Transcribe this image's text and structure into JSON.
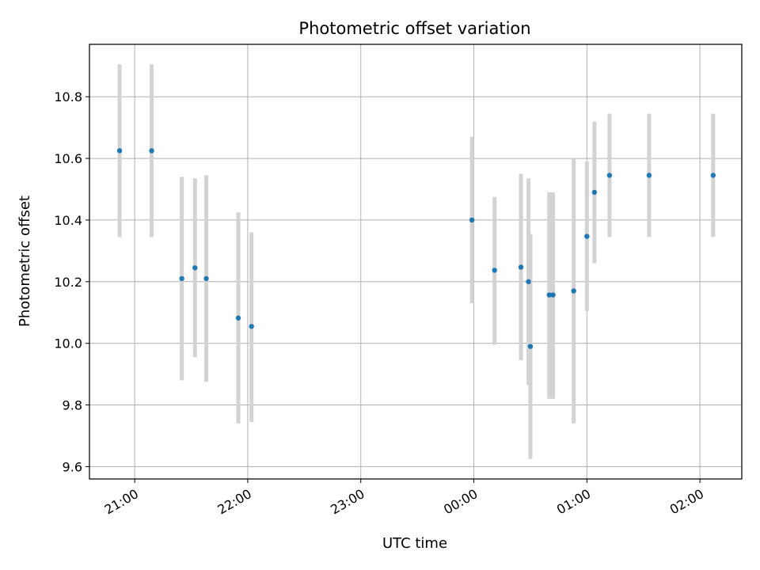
{
  "chart_data": {
    "type": "scatter",
    "title": "Photometric offset variation",
    "xlabel": "UTC time",
    "ylabel": "Photometric offset",
    "x_axis_kind": "time",
    "x_ticks": [
      "21:00",
      "22:00",
      "23:00",
      "00:00",
      "01:00",
      "02:00"
    ],
    "x_tick_hours": [
      21,
      22,
      23,
      24,
      25,
      26
    ],
    "xlim_hours": [
      20.6,
      26.37
    ],
    "y_ticks": [
      9.6,
      9.8,
      10.0,
      10.2,
      10.4,
      10.6,
      10.8
    ],
    "ylim": [
      9.56,
      10.97
    ],
    "grid": true,
    "colors": {
      "point": "#1f77b4",
      "errorbar": "#d3d3d3",
      "grid": "#b0b0b0"
    },
    "series": [
      {
        "points": [
          {
            "t": "20:52",
            "y": 10.625,
            "lo": 10.345,
            "hi": 10.905
          },
          {
            "t": "21:09",
            "y": 10.625,
            "lo": 10.345,
            "hi": 10.905
          },
          {
            "t": "21:25",
            "y": 10.21,
            "lo": 9.88,
            "hi": 10.54
          },
          {
            "t": "21:32",
            "y": 10.245,
            "lo": 9.955,
            "hi": 10.535
          },
          {
            "t": "21:38",
            "y": 10.21,
            "lo": 9.875,
            "hi": 10.545
          },
          {
            "t": "21:55",
            "y": 10.082,
            "lo": 9.74,
            "hi": 10.425
          },
          {
            "t": "22:02",
            "y": 10.055,
            "lo": 9.745,
            "hi": 10.36
          },
          {
            "t": "23:59",
            "y": 10.4,
            "lo": 10.13,
            "hi": 10.67
          },
          {
            "t": "00:11",
            "y": 10.237,
            "lo": 9.995,
            "hi": 10.475
          },
          {
            "t": "00:25",
            "y": 10.247,
            "lo": 9.945,
            "hi": 10.55
          },
          {
            "t": "00:29",
            "y": 10.2,
            "lo": 9.865,
            "hi": 10.535
          },
          {
            "t": "00:30",
            "y": 9.99,
            "lo": 9.625,
            "hi": 10.355
          },
          {
            "t": "00:40",
            "y": 10.157,
            "lo": 9.82,
            "hi": 10.49
          },
          {
            "t": "00:42",
            "y": 10.157,
            "lo": 9.82,
            "hi": 10.49
          },
          {
            "t": "00:53",
            "y": 10.17,
            "lo": 9.74,
            "hi": 10.6
          },
          {
            "t": "01:00",
            "y": 10.347,
            "lo": 10.105,
            "hi": 10.59
          },
          {
            "t": "01:04",
            "y": 10.49,
            "lo": 10.26,
            "hi": 10.72
          },
          {
            "t": "01:12",
            "y": 10.545,
            "lo": 10.345,
            "hi": 10.745
          },
          {
            "t": "01:33",
            "y": 10.545,
            "lo": 10.345,
            "hi": 10.745
          },
          {
            "t": "02:07",
            "y": 10.545,
            "lo": 10.345,
            "hi": 10.745
          }
        ]
      }
    ]
  }
}
